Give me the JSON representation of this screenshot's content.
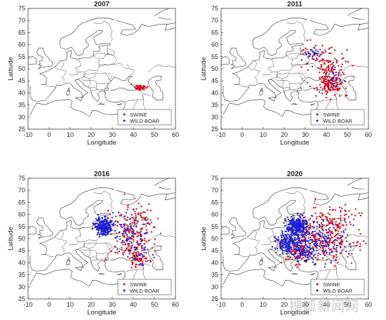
{
  "figure": {
    "watermark_text": "搜狐新闻网"
  },
  "chart_data": [
    {
      "type": "scatter",
      "title": "2007",
      "xlabel": "Longitude",
      "ylabel": "Latitude",
      "xlim": [
        -10,
        60
      ],
      "ylim": [
        25,
        75
      ],
      "xticks": [
        -10,
        0,
        10,
        20,
        30,
        40,
        50,
        60
      ],
      "yticks": [
        25,
        30,
        35,
        40,
        45,
        50,
        55,
        60,
        65,
        70,
        75
      ],
      "legend_position": "bottom-right",
      "series": [
        {
          "name": "SWINE",
          "color": "#e8000b",
          "marker": "dot",
          "clusters": [
            {
              "lon": 43.5,
              "lat": 42.2,
              "sx": 1.4,
              "sy": 0.6,
              "n": 45
            }
          ]
        },
        {
          "name": "WILD BOAR",
          "color": "#1f1fd6",
          "marker": "dot",
          "clusters": []
        }
      ]
    },
    {
      "type": "scatter",
      "title": "2011",
      "xlabel": "Longitude",
      "ylabel": "Latitude",
      "xlim": [
        -10,
        60
      ],
      "ylim": [
        25,
        75
      ],
      "xticks": [
        -10,
        0,
        10,
        20,
        30,
        40,
        50,
        60
      ],
      "yticks": [
        25,
        30,
        35,
        40,
        45,
        50,
        55,
        60,
        65,
        70,
        75
      ],
      "legend_position": "bottom-right",
      "series": [
        {
          "name": "SWINE",
          "color": "#e8000b",
          "marker": "dot",
          "clusters": [
            {
              "lon": 42,
              "lat": 43,
              "sx": 3,
              "sy": 2,
              "n": 110
            },
            {
              "lon": 41,
              "lat": 48,
              "sx": 3,
              "sy": 3,
              "n": 60
            },
            {
              "lon": 36,
              "lat": 56,
              "sx": 4,
              "sy": 2.5,
              "n": 45
            },
            {
              "lon": 45,
              "lat": 52,
              "sx": 4,
              "sy": 3,
              "n": 30
            }
          ]
        },
        {
          "name": "WILD BOAR",
          "color": "#1f1fd6",
          "marker": "dot",
          "clusters": [
            {
              "lon": 34,
              "lat": 56,
              "sx": 3,
              "sy": 1.5,
              "n": 30
            },
            {
              "lon": 43,
              "lat": 46,
              "sx": 2.5,
              "sy": 2.5,
              "n": 25
            }
          ]
        }
      ]
    },
    {
      "type": "scatter",
      "title": "2016",
      "xlabel": "Longitude",
      "ylabel": "Latitude",
      "xlim": [
        -10,
        60
      ],
      "ylim": [
        25,
        75
      ],
      "xticks": [
        -10,
        0,
        10,
        20,
        30,
        40,
        50,
        60
      ],
      "yticks": [
        25,
        30,
        35,
        40,
        45,
        50,
        55,
        60,
        65,
        70,
        75
      ],
      "legend_position": "bottom-right",
      "series": [
        {
          "name": "SWINE",
          "color": "#e8000b",
          "marker": "dot",
          "clusters": [
            {
              "lon": 40,
              "lat": 51,
              "sx": 5,
              "sy": 5,
              "n": 150
            },
            {
              "lon": 43,
              "lat": 42,
              "sx": 3,
              "sy": 2,
              "n": 60
            },
            {
              "lon": 42,
              "lat": 60,
              "sx": 4,
              "sy": 2,
              "n": 40
            }
          ]
        },
        {
          "name": "WILD BOAR",
          "color": "#1f1fd6",
          "marker": "dot",
          "clusters": [
            {
              "lon": 26,
              "lat": 55,
              "sx": 2,
              "sy": 1.8,
              "n": 260
            },
            {
              "lon": 38,
              "lat": 52,
              "sx": 4,
              "sy": 4,
              "n": 80
            },
            {
              "lon": 44,
              "lat": 44,
              "sx": 2.5,
              "sy": 2.5,
              "n": 30
            }
          ]
        }
      ]
    },
    {
      "type": "scatter",
      "title": "2020",
      "xlabel": "Longitude",
      "ylabel": "Latitude",
      "xlim": [
        -10,
        60
      ],
      "ylim": [
        25,
        75
      ],
      "xticks": [
        -10,
        0,
        10,
        20,
        30,
        40,
        50,
        60
      ],
      "yticks": [
        25,
        30,
        35,
        40,
        45,
        50,
        55,
        60,
        65,
        70,
        75
      ],
      "legend_position": "bottom-right",
      "series": [
        {
          "name": "SWINE",
          "color": "#e8000b",
          "marker": "dot",
          "clusters": [
            {
              "lon": 38,
              "lat": 50,
              "sx": 8,
              "sy": 5,
              "n": 280
            },
            {
              "lon": 26,
              "lat": 45,
              "sx": 3,
              "sy": 2.5,
              "n": 80
            },
            {
              "lon": 45,
              "lat": 58,
              "sx": 5,
              "sy": 3,
              "n": 60
            }
          ]
        },
        {
          "name": "WILD BOAR",
          "color": "#1f1fd6",
          "marker": "dot",
          "clusters": [
            {
              "lon": 26,
              "lat": 55,
              "sx": 2.5,
              "sy": 2,
              "n": 300
            },
            {
              "lon": 22,
              "lat": 48,
              "sx": 3,
              "sy": 2,
              "n": 200
            },
            {
              "lon": 38,
              "lat": 50,
              "sx": 6,
              "sy": 4,
              "n": 150
            },
            {
              "lon": 30,
              "lat": 44,
              "sx": 3,
              "sy": 2,
              "n": 80
            }
          ]
        }
      ]
    }
  ]
}
